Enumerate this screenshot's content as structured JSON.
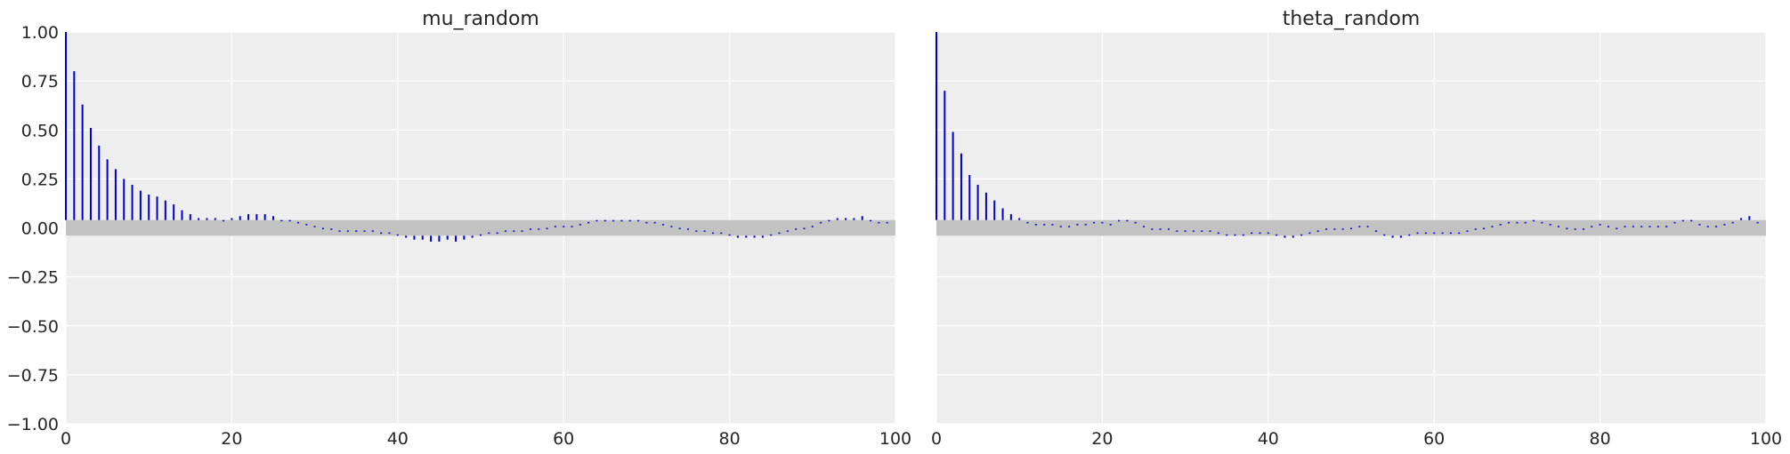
{
  "chart_data": [
    {
      "type": "bar",
      "title": "mu_random",
      "xlabel": "",
      "ylabel": "",
      "xlim": [
        0,
        100
      ],
      "ylim": [
        -1.0,
        1.0
      ],
      "xticks": [
        "0",
        "20",
        "40",
        "60",
        "80",
        "100"
      ],
      "yticks": [
        "1.00",
        "0.75",
        "0.50",
        "0.25",
        "0.00",
        "−0.25",
        "−0.50",
        "−0.75",
        "−1.00"
      ],
      "confidence_band": [
        -0.04,
        0.04
      ],
      "grid": true,
      "series": [
        {
          "x": [
            0,
            1,
            2,
            3,
            4,
            5,
            6,
            7,
            8,
            9,
            10,
            11,
            12,
            13,
            14,
            15,
            16,
            17,
            18,
            19,
            20,
            21,
            22,
            23,
            24,
            25,
            26,
            27,
            28,
            29,
            30,
            31,
            32,
            33,
            34,
            35,
            36,
            37,
            38,
            39,
            40,
            41,
            42,
            43,
            44,
            45,
            46,
            47,
            48,
            49,
            50,
            51,
            52,
            53,
            54,
            55,
            56,
            57,
            58,
            59,
            60,
            61,
            62,
            63,
            64,
            65,
            66,
            67,
            68,
            69,
            70,
            71,
            72,
            73,
            74,
            75,
            76,
            77,
            78,
            79,
            80,
            81,
            82,
            83,
            84,
            85,
            86,
            87,
            88,
            89,
            90,
            91,
            92,
            93,
            94,
            95,
            96,
            97,
            98,
            99
          ],
          "values": [
            1.0,
            0.8,
            0.63,
            0.51,
            0.42,
            0.35,
            0.3,
            0.25,
            0.22,
            0.19,
            0.17,
            0.16,
            0.14,
            0.12,
            0.09,
            0.07,
            0.05,
            0.05,
            0.05,
            0.04,
            0.05,
            0.06,
            0.07,
            0.07,
            0.07,
            0.06,
            0.04,
            0.04,
            0.03,
            0.02,
            0.01,
            0.0,
            -0.01,
            -0.02,
            -0.02,
            -0.02,
            -0.02,
            -0.02,
            -0.03,
            -0.03,
            -0.04,
            -0.05,
            -0.06,
            -0.06,
            -0.07,
            -0.07,
            -0.06,
            -0.07,
            -0.06,
            -0.05,
            -0.04,
            -0.03,
            -0.03,
            -0.02,
            -0.02,
            -0.02,
            -0.01,
            -0.01,
            0.0,
            0.01,
            0.01,
            0.01,
            0.02,
            0.03,
            0.04,
            0.04,
            0.04,
            0.04,
            0.04,
            0.04,
            0.03,
            0.03,
            0.02,
            0.01,
            0.0,
            -0.01,
            -0.02,
            -0.02,
            -0.03,
            -0.03,
            -0.04,
            -0.05,
            -0.05,
            -0.05,
            -0.05,
            -0.04,
            -0.03,
            -0.02,
            -0.01,
            0.0,
            0.01,
            0.03,
            0.04,
            0.05,
            0.05,
            0.05,
            0.06,
            0.04,
            0.03,
            0.03
          ]
        }
      ]
    },
    {
      "type": "bar",
      "title": "theta_random",
      "xlabel": "",
      "ylabel": "",
      "xlim": [
        0,
        100
      ],
      "ylim": [
        -1.0,
        1.0
      ],
      "xticks": [
        "0",
        "20",
        "40",
        "60",
        "80",
        "100"
      ],
      "yticks": [],
      "confidence_band": [
        -0.04,
        0.04
      ],
      "grid": true,
      "series": [
        {
          "x": [
            0,
            1,
            2,
            3,
            4,
            5,
            6,
            7,
            8,
            9,
            10,
            11,
            12,
            13,
            14,
            15,
            16,
            17,
            18,
            19,
            20,
            21,
            22,
            23,
            24,
            25,
            26,
            27,
            28,
            29,
            30,
            31,
            32,
            33,
            34,
            35,
            36,
            37,
            38,
            39,
            40,
            41,
            42,
            43,
            44,
            45,
            46,
            47,
            48,
            49,
            50,
            51,
            52,
            53,
            54,
            55,
            56,
            57,
            58,
            59,
            60,
            61,
            62,
            63,
            64,
            65,
            66,
            67,
            68,
            69,
            70,
            71,
            72,
            73,
            74,
            75,
            76,
            77,
            78,
            79,
            80,
            81,
            82,
            83,
            84,
            85,
            86,
            87,
            88,
            89,
            90,
            91,
            92,
            93,
            94,
            95,
            96,
            97,
            98,
            99
          ],
          "values": [
            1.0,
            0.7,
            0.49,
            0.38,
            0.27,
            0.22,
            0.18,
            0.14,
            0.1,
            0.07,
            0.05,
            0.03,
            0.02,
            0.02,
            0.02,
            0.01,
            0.01,
            0.02,
            0.02,
            0.03,
            0.03,
            0.02,
            0.04,
            0.04,
            0.03,
            0.01,
            -0.01,
            -0.01,
            -0.01,
            -0.02,
            -0.02,
            -0.02,
            -0.02,
            -0.02,
            -0.03,
            -0.04,
            -0.04,
            -0.04,
            -0.03,
            -0.03,
            -0.03,
            -0.04,
            -0.05,
            -0.05,
            -0.04,
            -0.03,
            -0.02,
            -0.01,
            -0.01,
            -0.01,
            0.0,
            0.01,
            0.01,
            -0.02,
            -0.04,
            -0.05,
            -0.05,
            -0.04,
            -0.03,
            -0.03,
            -0.03,
            -0.03,
            -0.03,
            -0.03,
            -0.02,
            -0.01,
            0.0,
            0.01,
            0.02,
            0.03,
            0.03,
            0.03,
            0.04,
            0.03,
            0.02,
            0.01,
            0.0,
            -0.01,
            -0.01,
            0.01,
            0.02,
            0.01,
            0.0,
            0.01,
            0.01,
            0.01,
            0.01,
            0.01,
            0.01,
            0.03,
            0.04,
            0.04,
            0.02,
            0.01,
            0.01,
            0.02,
            0.03,
            0.05,
            0.06,
            0.03
          ]
        }
      ]
    }
  ]
}
